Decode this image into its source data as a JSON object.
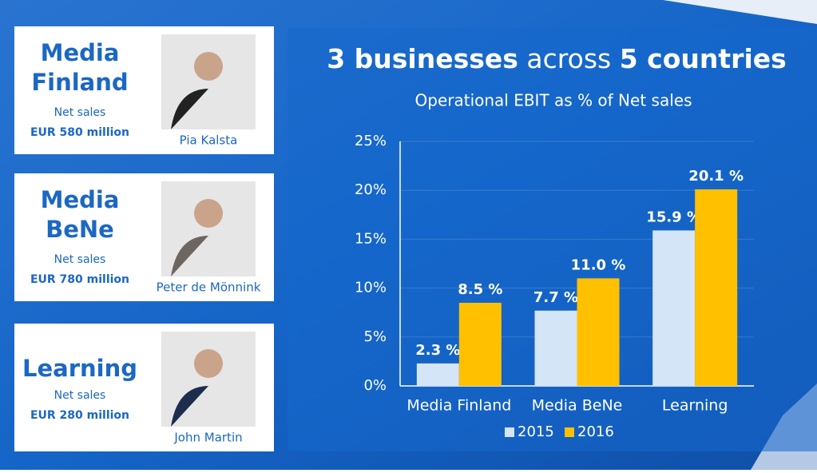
{
  "cards": [
    {
      "title_lines": [
        "Media",
        "Finland"
      ],
      "sales_label": "Net sales",
      "sales": "EUR 580 million",
      "person": "Pia Kalsta"
    },
    {
      "title_lines": [
        "Media",
        "BeNe"
      ],
      "sales_label": "Net sales",
      "sales": "EUR 780 million",
      "person": "Peter de Mönnink"
    },
    {
      "title_lines": [
        "Learning"
      ],
      "sales_label": "Net sales",
      "sales": "EUR 280 million",
      "person": "John Martin"
    }
  ],
  "chart_data": {
    "type": "bar",
    "title_parts": [
      "3 businesses",
      "across",
      "5 countries"
    ],
    "subtitle": "Operational EBIT as % of Net sales",
    "categories": [
      "Media Finland",
      "Media BeNe",
      "Learning"
    ],
    "series": [
      {
        "name": "2015",
        "color": "#d3e5f7",
        "values": [
          2.3,
          7.7,
          15.9
        ],
        "value_labels": [
          "2.3 %",
          "7.7 %",
          "15.9 %"
        ]
      },
      {
        "name": "2016",
        "color": "#ffc000",
        "values": [
          8.5,
          11.0,
          20.1
        ],
        "value_labels": [
          "8.5 %",
          "11.0 %",
          "20.1 %"
        ]
      }
    ],
    "ylim": [
      0,
      25
    ],
    "yticks": [
      {
        "value": 0,
        "label": "0%"
      },
      {
        "value": 5,
        "label": "5%"
      },
      {
        "value": 10,
        "label": "10%"
      },
      {
        "value": 15,
        "label": "15%"
      },
      {
        "value": 20,
        "label": "20%"
      },
      {
        "value": 25,
        "label": "25%"
      }
    ],
    "grid": true,
    "legend": "bottom"
  }
}
